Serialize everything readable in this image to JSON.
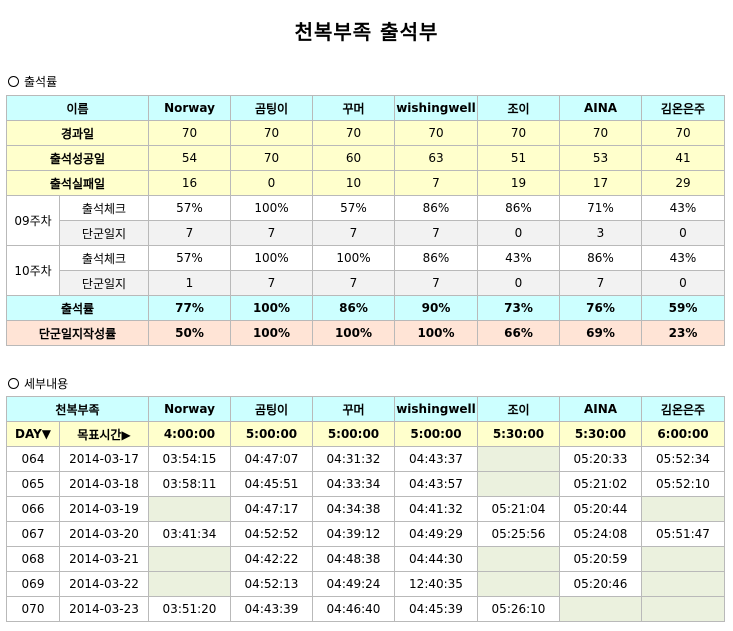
{
  "title": "천복부족 출석부",
  "attendance": {
    "section_label": "출석률",
    "header_label": "이름",
    "members": [
      "Norway",
      "곰팅이",
      "꾸머",
      "wishingwell",
      "조이",
      "AINA",
      "김온은주"
    ],
    "elapsed": {
      "label": "경과일",
      "values": [
        "70",
        "70",
        "70",
        "70",
        "70",
        "70",
        "70"
      ]
    },
    "success": {
      "label": "출석성공일",
      "values": [
        "54",
        "70",
        "60",
        "63",
        "51",
        "53",
        "41"
      ]
    },
    "fail": {
      "label": "출석실패일",
      "values": [
        "16",
        "0",
        "10",
        "7",
        "19",
        "17",
        "29"
      ]
    },
    "weeks": [
      {
        "label": "09주차",
        "check": {
          "label": "출석체크",
          "values": [
            "57%",
            "100%",
            "57%",
            "86%",
            "86%",
            "71%",
            "43%"
          ]
        },
        "diary": {
          "label": "단군일지",
          "values": [
            "7",
            "7",
            "7",
            "7",
            "0",
            "3",
            "0"
          ]
        }
      },
      {
        "label": "10주차",
        "check": {
          "label": "출석체크",
          "values": [
            "57%",
            "100%",
            "100%",
            "86%",
            "43%",
            "86%",
            "43%"
          ]
        },
        "diary": {
          "label": "단군일지",
          "values": [
            "1",
            "7",
            "7",
            "7",
            "0",
            "7",
            "0"
          ]
        }
      }
    ],
    "rate": {
      "label": "출석률",
      "values": [
        "77%",
        "100%",
        "86%",
        "90%",
        "73%",
        "76%",
        "59%"
      ]
    },
    "diary_rate": {
      "label": "단군일지작성률",
      "values": [
        "50%",
        "100%",
        "100%",
        "100%",
        "66%",
        "69%",
        "23%"
      ]
    }
  },
  "detail": {
    "section_label": "세부내용",
    "header_label": "천복부족",
    "members": [
      "Norway",
      "곰팅이",
      "꾸머",
      "wishingwell",
      "조이",
      "AINA",
      "김온은주"
    ],
    "day_label": "DAY▼",
    "target_label": "목표시간▶",
    "targets": [
      "4:00:00",
      "5:00:00",
      "5:00:00",
      "5:00:00",
      "5:30:00",
      "5:30:00",
      "6:00:00"
    ],
    "rows": [
      {
        "day": "064",
        "date": "2014-03-17",
        "times": [
          "03:54:15",
          "04:47:07",
          "04:31:32",
          "04:43:37",
          "",
          "05:20:33",
          "05:52:34"
        ]
      },
      {
        "day": "065",
        "date": "2014-03-18",
        "times": [
          "03:58:11",
          "04:45:51",
          "04:33:34",
          "04:43:57",
          "",
          "05:21:02",
          "05:52:10"
        ]
      },
      {
        "day": "066",
        "date": "2014-03-19",
        "times": [
          "",
          "04:47:17",
          "04:34:38",
          "04:41:32",
          "05:21:04",
          "05:20:44",
          ""
        ]
      },
      {
        "day": "067",
        "date": "2014-03-20",
        "times": [
          "03:41:34",
          "04:52:52",
          "04:39:12",
          "04:49:29",
          "05:25:56",
          "05:24:08",
          "05:51:47"
        ]
      },
      {
        "day": "068",
        "date": "2014-03-21",
        "times": [
          "",
          "04:42:22",
          "04:48:38",
          "04:44:30",
          "",
          "05:20:59",
          ""
        ]
      },
      {
        "day": "069",
        "date": "2014-03-22",
        "times": [
          "",
          "04:52:13",
          "04:49:24",
          "12:40:35",
          "",
          "05:20:46",
          ""
        ]
      },
      {
        "day": "070",
        "date": "2014-03-23",
        "times": [
          "03:51:20",
          "04:43:39",
          "04:46:40",
          "04:45:39",
          "05:26:10",
          "",
          ""
        ]
      }
    ]
  }
}
